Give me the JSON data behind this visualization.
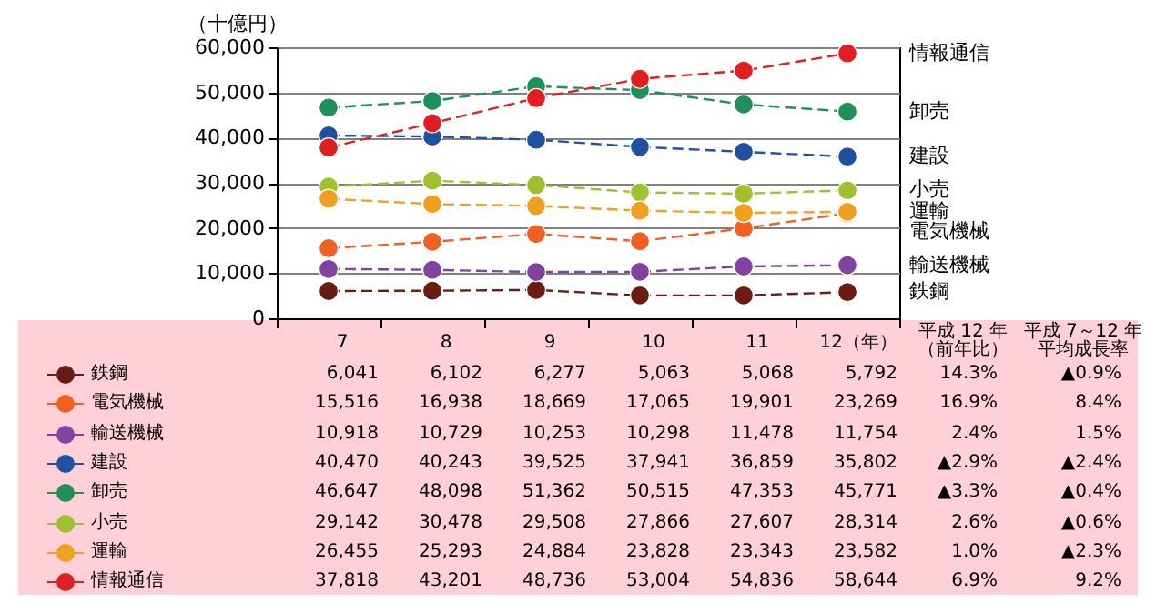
{
  "chart_data": {
    "type": "line",
    "ylabel": "（十億円）",
    "categories": [
      "7",
      "8",
      "9",
      "10",
      "11",
      "12（年）"
    ],
    "ylim": [
      0,
      60000
    ],
    "yticks": [
      {
        "value": 0,
        "label": "0"
      },
      {
        "value": 10000,
        "label": "10,000"
      },
      {
        "value": 20000,
        "label": "20,000"
      },
      {
        "value": 30000,
        "label": "30,000"
      },
      {
        "value": 40000,
        "label": "40,000"
      },
      {
        "value": 50000,
        "label": "50,000"
      },
      {
        "value": 60000,
        "label": "60,000"
      }
    ],
    "grid": "y",
    "marker": "circle",
    "line_style": "dashed",
    "legend": "bottom left",
    "series": [
      {
        "name": "鉄鋼",
        "color": "#6b1c12",
        "values": [
          6041,
          6102,
          6277,
          5063,
          5068,
          5792
        ],
        "value_labels": [
          "6,041",
          "6,102",
          "6,277",
          "5,063",
          "5,068",
          "5,792"
        ]
      },
      {
        "name": "電気機械",
        "color": "#f06020",
        "values": [
          15516,
          16938,
          18669,
          17065,
          19901,
          23269
        ],
        "value_labels": [
          "15,516",
          "16,938",
          "18,669",
          "17,065",
          "19,901",
          "23,269"
        ]
      },
      {
        "name": "輸送機械",
        "color": "#8044a0",
        "values": [
          10918,
          10729,
          10253,
          10298,
          11478,
          11754
        ],
        "value_labels": [
          "10,918",
          "10,729",
          "10,253",
          "10,298",
          "11,478",
          "11,754"
        ]
      },
      {
        "name": "建設",
        "color": "#2050a0",
        "values": [
          40470,
          40243,
          39525,
          37941,
          36859,
          35802
        ],
        "value_labels": [
          "40,470",
          "40,243",
          "39,525",
          "37,941",
          "36,859",
          "35,802"
        ]
      },
      {
        "name": "卸売",
        "color": "#20905a",
        "values": [
          46647,
          48098,
          51362,
          50515,
          47353,
          45771
        ],
        "value_labels": [
          "46,647",
          "48,098",
          "51,362",
          "50,515",
          "47,353",
          "45,771"
        ]
      },
      {
        "name": "小売",
        "color": "#a0c030",
        "values": [
          29142,
          30478,
          29508,
          27866,
          27607,
          28314
        ],
        "value_labels": [
          "29,142",
          "30,478",
          "29,508",
          "27,866",
          "27,607",
          "28,314"
        ]
      },
      {
        "name": "運輸",
        "color": "#f0a020",
        "values": [
          26455,
          25293,
          24884,
          23828,
          23343,
          23582
        ],
        "value_labels": [
          "26,455",
          "25,293",
          "24,884",
          "23,828",
          "23,343",
          "23,582"
        ]
      },
      {
        "name": "情報通信",
        "color": "#e02020",
        "values": [
          37818,
          43201,
          48736,
          53004,
          54836,
          58644
        ],
        "value_labels": [
          "37,818",
          "43,201",
          "48,736",
          "53,004",
          "54,836",
          "58,644"
        ]
      }
    ],
    "annotations": [
      "平成 12 年",
      "（前年比）",
      "平成 7～12 年",
      "平均成長率",
      "14.3%",
      "▲0.9%",
      "16.9%",
      "8.4%",
      "2.4%",
      "1.5%",
      "▲2.9%",
      "▲2.4%",
      "▲3.3%",
      "▲0.4%",
      "2.6%",
      "▲0.6%",
      "1.0%",
      "▲2.3%",
      "6.9%",
      "9.2%"
    ]
  }
}
